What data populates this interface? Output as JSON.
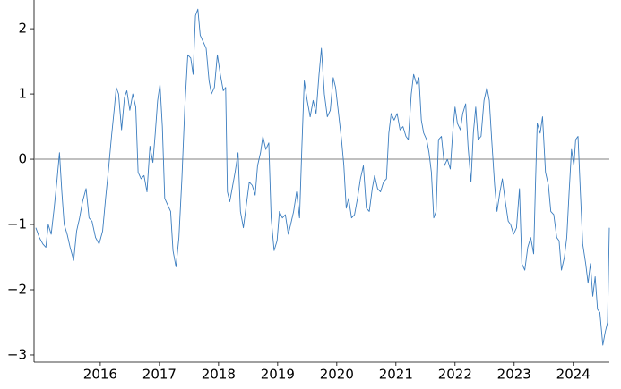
{
  "chart_data": {
    "type": "line",
    "color": "#3b7dbf",
    "xlim": [
      2014.88,
      2024.61
    ],
    "ylim": [
      -3.11,
      2.44
    ],
    "xticks": [
      2016,
      2017,
      2018,
      2019,
      2020,
      2021,
      2022,
      2023,
      2024
    ],
    "yticks": [
      {
        "value": -3,
        "label": "−3"
      },
      {
        "value": -2,
        "label": "−2"
      },
      {
        "value": -1,
        "label": "−1"
      },
      0,
      1,
      2
    ],
    "hline": 0,
    "x": [
      2014.91,
      2014.97,
      2015.03,
      2015.08,
      2015.12,
      2015.17,
      2015.22,
      2015.27,
      2015.31,
      2015.35,
      2015.39,
      2015.44,
      2015.49,
      2015.55,
      2015.6,
      2015.65,
      2015.7,
      2015.76,
      2015.81,
      2015.86,
      2015.92,
      2015.98,
      2016.04,
      2016.09,
      2016.14,
      2016.19,
      2016.24,
      2016.27,
      2016.31,
      2016.36,
      2016.41,
      2016.45,
      2016.5,
      2016.55,
      2016.6,
      2016.64,
      2016.69,
      2016.74,
      2016.79,
      2016.84,
      2016.89,
      2016.93,
      2016.97,
      2017.01,
      2017.05,
      2017.09,
      2017.14,
      2017.19,
      2017.23,
      2017.28,
      2017.33,
      2017.38,
      2017.43,
      2017.48,
      2017.53,
      2017.57,
      2017.61,
      2017.65,
      2017.69,
      2017.74,
      2017.79,
      2017.84,
      2017.88,
      2017.93,
      2017.98,
      2018.03,
      2018.08,
      2018.12,
      2018.15,
      2018.19,
      2018.24,
      2018.28,
      2018.33,
      2018.37,
      2018.42,
      2018.47,
      2018.52,
      2018.57,
      2018.62,
      2018.66,
      2018.71,
      2018.75,
      2018.8,
      2018.85,
      2018.89,
      2018.94,
      2018.99,
      2019.03,
      2019.08,
      2019.13,
      2019.18,
      2019.22,
      2019.27,
      2019.32,
      2019.37,
      2019.41,
      2019.45,
      2019.5,
      2019.55,
      2019.6,
      2019.65,
      2019.7,
      2019.74,
      2019.79,
      2019.84,
      2019.89,
      2019.94,
      2019.98,
      2020.03,
      2020.08,
      2020.12,
      2020.16,
      2020.2,
      2020.25,
      2020.3,
      2020.35,
      2020.4,
      2020.45,
      2020.5,
      2020.55,
      2020.6,
      2020.64,
      2020.69,
      2020.74,
      2020.79,
      2020.84,
      2020.88,
      2020.92,
      2020.97,
      2021.02,
      2021.07,
      2021.12,
      2021.17,
      2021.21,
      2021.26,
      2021.3,
      2021.35,
      2021.39,
      2021.43,
      2021.47,
      2021.52,
      2021.56,
      2021.6,
      2021.64,
      2021.68,
      2021.72,
      2021.77,
      2021.82,
      2021.87,
      2021.92,
      2021.96,
      2022.0,
      2022.04,
      2022.09,
      2022.13,
      2022.18,
      2022.22,
      2022.27,
      2022.31,
      2022.35,
      2022.39,
      2022.44,
      2022.49,
      2022.54,
      2022.58,
      2022.62,
      2022.67,
      2022.71,
      2022.76,
      2022.8,
      2022.85,
      2022.9,
      2022.94,
      2022.99,
      2023.04,
      2023.09,
      2023.13,
      2023.18,
      2023.23,
      2023.28,
      2023.33,
      2023.36,
      2023.39,
      2023.44,
      2023.48,
      2023.53,
      2023.58,
      2023.62,
      2023.67,
      2023.72,
      2023.76,
      2023.8,
      2023.85,
      2023.89,
      2023.93,
      2023.97,
      2024.01,
      2024.04,
      2024.08,
      2024.12,
      2024.16,
      2024.21,
      2024.25,
      2024.29,
      2024.33,
      2024.37,
      2024.41,
      2024.45,
      2024.5,
      2024.54,
      2024.58,
      2024.61
    ],
    "values": [
      -1.05,
      -1.2,
      -1.3,
      -1.35,
      -1.0,
      -1.15,
      -0.75,
      -0.3,
      0.1,
      -0.5,
      -1.0,
      -1.15,
      -1.35,
      -1.55,
      -1.1,
      -0.9,
      -0.65,
      -0.45,
      -0.9,
      -0.95,
      -1.2,
      -1.3,
      -1.1,
      -0.6,
      -0.15,
      0.35,
      0.8,
      1.1,
      1.0,
      0.45,
      0.95,
      1.05,
      0.75,
      1.0,
      0.8,
      -0.2,
      -0.3,
      -0.25,
      -0.5,
      0.2,
      -0.05,
      0.4,
      0.9,
      1.15,
      0.5,
      -0.6,
      -0.7,
      -0.8,
      -1.4,
      -1.65,
      -1.2,
      -0.3,
      0.8,
      1.6,
      1.55,
      1.3,
      2.2,
      2.3,
      1.9,
      1.8,
      1.7,
      1.2,
      1.0,
      1.1,
      1.6,
      1.3,
      1.05,
      1.1,
      -0.5,
      -0.65,
      -0.4,
      -0.2,
      0.1,
      -0.8,
      -1.05,
      -0.7,
      -0.35,
      -0.4,
      -0.55,
      -0.1,
      0.1,
      0.35,
      0.15,
      0.25,
      -0.9,
      -1.4,
      -1.25,
      -0.8,
      -0.9,
      -0.85,
      -1.15,
      -1.0,
      -0.8,
      -0.5,
      -0.9,
      0.2,
      1.2,
      0.9,
      0.65,
      0.9,
      0.7,
      1.3,
      1.7,
      1.0,
      0.65,
      0.75,
      1.25,
      1.1,
      0.7,
      0.3,
      -0.1,
      -0.75,
      -0.6,
      -0.9,
      -0.85,
      -0.6,
      -0.3,
      -0.1,
      -0.75,
      -0.8,
      -0.45,
      -0.25,
      -0.45,
      -0.5,
      -0.35,
      -0.3,
      0.4,
      0.7,
      0.6,
      0.7,
      0.45,
      0.5,
      0.35,
      0.3,
      1.0,
      1.3,
      1.15,
      1.25,
      0.6,
      0.4,
      0.3,
      0.1,
      -0.2,
      -0.9,
      -0.8,
      0.3,
      0.35,
      -0.1,
      0.0,
      -0.15,
      0.4,
      0.8,
      0.55,
      0.45,
      0.7,
      0.85,
      0.2,
      -0.35,
      0.4,
      0.8,
      0.3,
      0.35,
      0.9,
      1.1,
      0.9,
      0.3,
      -0.4,
      -0.8,
      -0.5,
      -0.3,
      -0.65,
      -0.95,
      -1.0,
      -1.15,
      -1.05,
      -0.45,
      -1.6,
      -1.7,
      -1.35,
      -1.2,
      -1.45,
      -0.4,
      0.55,
      0.4,
      0.65,
      -0.2,
      -0.4,
      -0.8,
      -0.85,
      -1.2,
      -1.25,
      -1.7,
      -1.5,
      -1.2,
      -0.5,
      0.15,
      -0.1,
      0.3,
      0.35,
      -0.5,
      -1.3,
      -1.6,
      -1.9,
      -1.6,
      -2.1,
      -1.8,
      -2.3,
      -2.35,
      -2.85,
      -2.65,
      -2.5,
      -1.05
    ]
  }
}
